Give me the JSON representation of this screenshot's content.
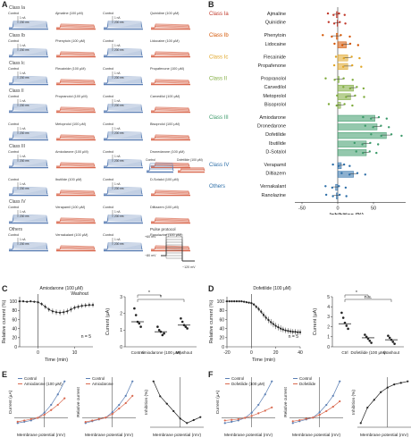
{
  "panel_letters": [
    "A",
    "B",
    "C",
    "D",
    "E",
    "F"
  ],
  "colors": {
    "control": "#5b7fb4",
    "drug": "#d9694f",
    "class_ia": "#c0392b",
    "class_ib": "#d35400",
    "class_ic": "#e0a526",
    "class_ii": "#7daa3a",
    "class_iii": "#3c9a6a",
    "class_iv": "#2e6fa8",
    "others": "#2e6fa8"
  },
  "panelA": {
    "class_labels": [
      "Class Ia",
      "Class Ib",
      "Class Ic",
      "Class II",
      "Class III",
      "Class IV",
      "Others"
    ],
    "rows": [
      {
        "class": "Class Ia",
        "cells": [
          {
            "c": "Control",
            "d": "Ajmaline (100 μM)"
          },
          {
            "c": "Control",
            "d": "Quinidine (100 μM)"
          }
        ]
      },
      {
        "class": "Class Ib",
        "cells": [
          {
            "c": "Control",
            "d": "Phenytoin (100 μM)"
          },
          {
            "c": "Control",
            "d": "Lidocaine (100 μM)"
          }
        ]
      },
      {
        "class": "Class Ic",
        "cells": [
          {
            "c": "Control",
            "d": "Flecainide (100 μM)"
          },
          {
            "c": "Control",
            "d": "Propafenone (100 μM)"
          }
        ]
      },
      {
        "class": "Class II",
        "cells": [
          {
            "c": "Control",
            "d": "Propranolol (100 μM)"
          },
          {
            "c": "Control",
            "d": "Carvedilol (100 μM)"
          }
        ]
      },
      {
        "class": "",
        "cells": [
          {
            "c": "Control",
            "d": "Metoprolol (100 μM)"
          },
          {
            "c": "Control",
            "d": "Bisoprolol (100 μM)"
          }
        ]
      },
      {
        "class": "Class III",
        "cells": [
          {
            "c": "Control",
            "d": "Amiodarone (100 μM)"
          },
          {
            "c": "Control",
            "d": "Dronedarone (100 μM)"
          }
        ]
      },
      {
        "class": "",
        "cells": [
          {
            "c": "Control",
            "d": "Ibutilide (100 μM)"
          },
          {
            "c": "Control",
            "d": "D-Sotalol (100 μM)"
          }
        ]
      },
      {
        "class": "Class IV",
        "cells": [
          {
            "c": "Control",
            "d": "Verapamil (100 μM)"
          },
          {
            "c": "Control",
            "d": "Diltiazem (100 μM)"
          }
        ]
      },
      {
        "class": "Others",
        "cells": [
          {
            "c": "Control",
            "d": "Vernakalant (100 μM)"
          },
          {
            "c": "Control",
            "d": "Ranolazine (100 μM)"
          }
        ]
      }
    ],
    "extra_trace": {
      "c": "Control",
      "d": "Dofetilide (100 μM)"
    },
    "scale_label": "1 nA",
    "scale_time": "200 ms",
    "protocol_title": "Pulse protocol",
    "protocol_v1": "+60 mV",
    "protocol_v2": "−80 mV",
    "protocol_v3": "−120 mV"
  },
  "chart_data": [
    {
      "type": "bar",
      "panel": "B",
      "orientation": "horizontal",
      "groups": [
        {
          "label": "Class Ia",
          "drugs": [
            "Ajmaline",
            "Quinidine"
          ]
        },
        {
          "label": "Class Ib",
          "drugs": [
            "Phenytoin",
            "Lidocaine"
          ]
        },
        {
          "label": "Class Ic",
          "drugs": [
            "Flecainide",
            "Propafenone"
          ]
        },
        {
          "label": "Class II",
          "drugs": [
            "Propranolol",
            "Carvedilol",
            "Metoprolol",
            "Bisoprolol"
          ]
        },
        {
          "label": "Class III",
          "drugs": [
            "Amiodarone",
            "Dronedarone",
            "Dofetilide",
            "Ibutilide",
            "D-Sotalol"
          ]
        },
        {
          "label": "Class IV",
          "drugs": [
            "Verapamil",
            "Diltiazem"
          ]
        },
        {
          "label": "Others",
          "drugs": [
            "Vernakalant",
            "Ranolazine"
          ]
        }
      ],
      "categories": [
        "Ajmaline",
        "Quinidine",
        "Phenytoin",
        "Lidocaine",
        "Flecainide",
        "Propafenone",
        "Propranolol",
        "Carvedilol",
        "Metoprolol",
        "Bisoprolol",
        "Amiodarone",
        "Dronedarone",
        "Dofetilide",
        "Ibutilide",
        "D-Sotalol",
        "Verapamil",
        "Diltiazem",
        "Vernakalant",
        "Ranolazine"
      ],
      "values": [
        -2,
        -1,
        -2,
        12,
        14,
        14,
        2,
        22,
        18,
        4,
        52,
        55,
        68,
        40,
        40,
        5,
        22,
        -3,
        -2
      ],
      "errors": [
        3,
        3,
        6,
        5,
        5,
        6,
        6,
        4,
        6,
        5,
        5,
        5,
        7,
        5,
        4,
        3,
        5,
        4,
        4
      ],
      "xlabel": "Inhibition (%)",
      "xticks": [
        -50,
        0,
        50
      ],
      "xlim": [
        -70,
        95
      ]
    },
    {
      "type": "line",
      "panel": "C",
      "annotation": "Amiodarone (100 μM)",
      "washout_label": "Washout",
      "n_label": "n = 5",
      "x": [
        -5,
        -4,
        -3,
        -2,
        -1,
        0,
        1,
        2,
        3,
        4,
        5,
        6,
        7,
        8,
        9,
        10,
        11,
        12,
        13,
        14,
        15
      ],
      "y": [
        100,
        100,
        99,
        100,
        99,
        98,
        94,
        88,
        82,
        78,
        76,
        75,
        76,
        78,
        82,
        86,
        88,
        90,
        91,
        92,
        92
      ],
      "yerr": [
        2,
        2,
        2,
        2,
        2,
        3,
        4,
        5,
        5,
        6,
        6,
        6,
        6,
        6,
        6,
        5,
        5,
        5,
        5,
        5,
        5
      ],
      "xlabel": "Time (min)",
      "ylabel": "Relative current (%)",
      "xticks": [
        0,
        10
      ],
      "yticks": [
        0,
        20,
        40,
        60,
        80,
        100
      ],
      "ylim": [
        0,
        110
      ]
    },
    {
      "type": "scatter",
      "panel": "C-right",
      "categories": [
        "Control",
        "Amiodarone (100 μM)",
        "Washout"
      ],
      "values": [
        1.5,
        0.9,
        1.3
      ],
      "points": [
        [
          2.3,
          1.9,
          1.5,
          1.4,
          1.2
        ],
        [
          1.2,
          1.0,
          0.9,
          0.7,
          0.8
        ],
        [
          1.7,
          1.5,
          1.3,
          1.2,
          1.1
        ]
      ],
      "ylabel": "Current (μA)",
      "yticks": [
        0,
        1,
        2,
        3
      ],
      "ylim": [
        0,
        3
      ],
      "significance": [
        "*",
        "*"
      ]
    },
    {
      "type": "line",
      "panel": "D",
      "annotation": "Dofetilide (100 μM)",
      "n_label": "n = 5",
      "x": [
        -20,
        -18,
        -16,
        -14,
        -12,
        -10,
        -8,
        -6,
        -4,
        -2,
        0,
        2,
        4,
        6,
        8,
        10,
        12,
        14,
        16,
        18,
        20,
        22,
        24,
        26,
        28,
        30,
        32,
        34,
        36,
        38,
        40
      ],
      "y": [
        100,
        100,
        100,
        100,
        100,
        100,
        100,
        99,
        98,
        97,
        96,
        93,
        88,
        83,
        77,
        70,
        64,
        59,
        54,
        50,
        46,
        43,
        40,
        38,
        36,
        35,
        34,
        33,
        33,
        32,
        32
      ],
      "yerr": [
        1,
        1,
        1,
        1,
        1,
        1,
        1,
        2,
        2,
        2,
        3,
        3,
        4,
        5,
        5,
        6,
        6,
        7,
        7,
        7,
        7,
        7,
        7,
        6,
        6,
        6,
        6,
        6,
        6,
        6,
        6
      ],
      "xlabel": "Time (min)",
      "ylabel": "Relative current (%)",
      "xticks": [
        -20,
        0,
        20,
        40
      ],
      "yticks": [
        0,
        20,
        40,
        60,
        80,
        100
      ],
      "ylim": [
        0,
        110
      ]
    },
    {
      "type": "scatter",
      "panel": "D-right",
      "categories": [
        "Ctrl",
        "Dofetilide (100 μM)",
        "Washout"
      ],
      "values": [
        2.3,
        0.9,
        0.7
      ],
      "points": [
        [
          3.4,
          2.9,
          2.4,
          2.1,
          1.8
        ],
        [
          1.2,
          1.0,
          0.8,
          0.6,
          0.4
        ],
        [
          1.1,
          0.9,
          0.7,
          0.5,
          0.3
        ]
      ],
      "ylabel": "Current (μA)",
      "yticks": [
        0,
        1,
        2,
        3,
        4,
        5
      ],
      "ylim": [
        0,
        5
      ],
      "significance": [
        "*",
        "n.s."
      ]
    },
    {
      "type": "line",
      "panel": "E",
      "subplots": [
        {
          "ylabel": "Current (μA)",
          "xlabel": "Membrane potential (mV)",
          "legend": [
            "Control",
            "Amiodarone (100 μM)"
          ],
          "x": [
            -80,
            -60,
            -40,
            -20,
            0,
            20,
            40,
            60
          ],
          "series": [
            {
              "name": "Control",
              "values": [
                -0.4,
                -0.3,
                -0.2,
                0,
                0.4,
                1.0,
                1.8,
                2.8
              ]
            },
            {
              "name": "Amiodarone (100 μM)",
              "values": [
                -0.3,
                -0.2,
                -0.1,
                0,
                0.25,
                0.6,
                1.0,
                1.5
              ]
            }
          ]
        },
        {
          "ylabel": "Relative current",
          "xlabel": "Membrane potential (mV)",
          "legend": [
            "Control",
            "Amiodarone"
          ],
          "x": [
            -80,
            -60,
            -40,
            -20,
            0,
            20,
            40,
            60
          ],
          "series": [
            {
              "name": "Control",
              "values": [
                -0.15,
                -0.1,
                -0.05,
                0,
                0.15,
                0.35,
                0.6,
                1.0
              ]
            },
            {
              "name": "Amiodarone",
              "values": [
                -0.12,
                -0.08,
                -0.04,
                0,
                0.1,
                0.25,
                0.4,
                0.6
              ]
            }
          ]
        },
        {
          "ylabel": "Inhibition (%)",
          "xlabel": "Membrane potential (mV)",
          "x": [
            -80,
            -60,
            -40,
            -20,
            0,
            20,
            40,
            60
          ],
          "series": [
            {
              "name": "Inhibition",
              "values": [
                70,
                60,
                55,
                50,
                45,
                42,
                44,
                46
              ]
            }
          ]
        }
      ]
    },
    {
      "type": "line",
      "panel": "F",
      "subplots": [
        {
          "ylabel": "Current (μA)",
          "xlabel": "Membrane potential (mV)",
          "legend": [
            "Control",
            "Dofetilide (100 μM)"
          ],
          "x": [
            -80,
            -60,
            -40,
            -20,
            0,
            20,
            40,
            60
          ],
          "series": [
            {
              "name": "Control",
              "values": [
                -0.4,
                -0.3,
                -0.2,
                0,
                0.4,
                1.0,
                1.8,
                2.8
              ]
            },
            {
              "name": "Dofetilide (100 μM)",
              "values": [
                -0.2,
                -0.15,
                -0.1,
                0,
                0.15,
                0.35,
                0.55,
                0.8
              ]
            }
          ]
        },
        {
          "ylabel": "Relative current",
          "xlabel": "Membrane potential (mV)",
          "legend": [
            "Control",
            "Dofetilide"
          ],
          "x": [
            -80,
            -60,
            -40,
            -20,
            0,
            20,
            40,
            60
          ],
          "series": [
            {
              "name": "Control",
              "values": [
                -0.15,
                -0.1,
                -0.05,
                0,
                0.15,
                0.35,
                0.6,
                1.0
              ]
            },
            {
              "name": "Dofetilide",
              "values": [
                -0.1,
                -0.07,
                -0.03,
                0,
                0.08,
                0.18,
                0.3,
                0.45
              ]
            }
          ]
        },
        {
          "ylabel": "Inhibition (%)",
          "xlabel": "Membrane potential (mV)",
          "x": [
            -80,
            -60,
            -40,
            -20,
            0,
            20,
            40,
            60
          ],
          "series": [
            {
              "name": "Inhibition",
              "values": [
                45,
                55,
                60,
                65,
                68,
                70,
                71,
                72
              ]
            }
          ]
        }
      ]
    }
  ]
}
